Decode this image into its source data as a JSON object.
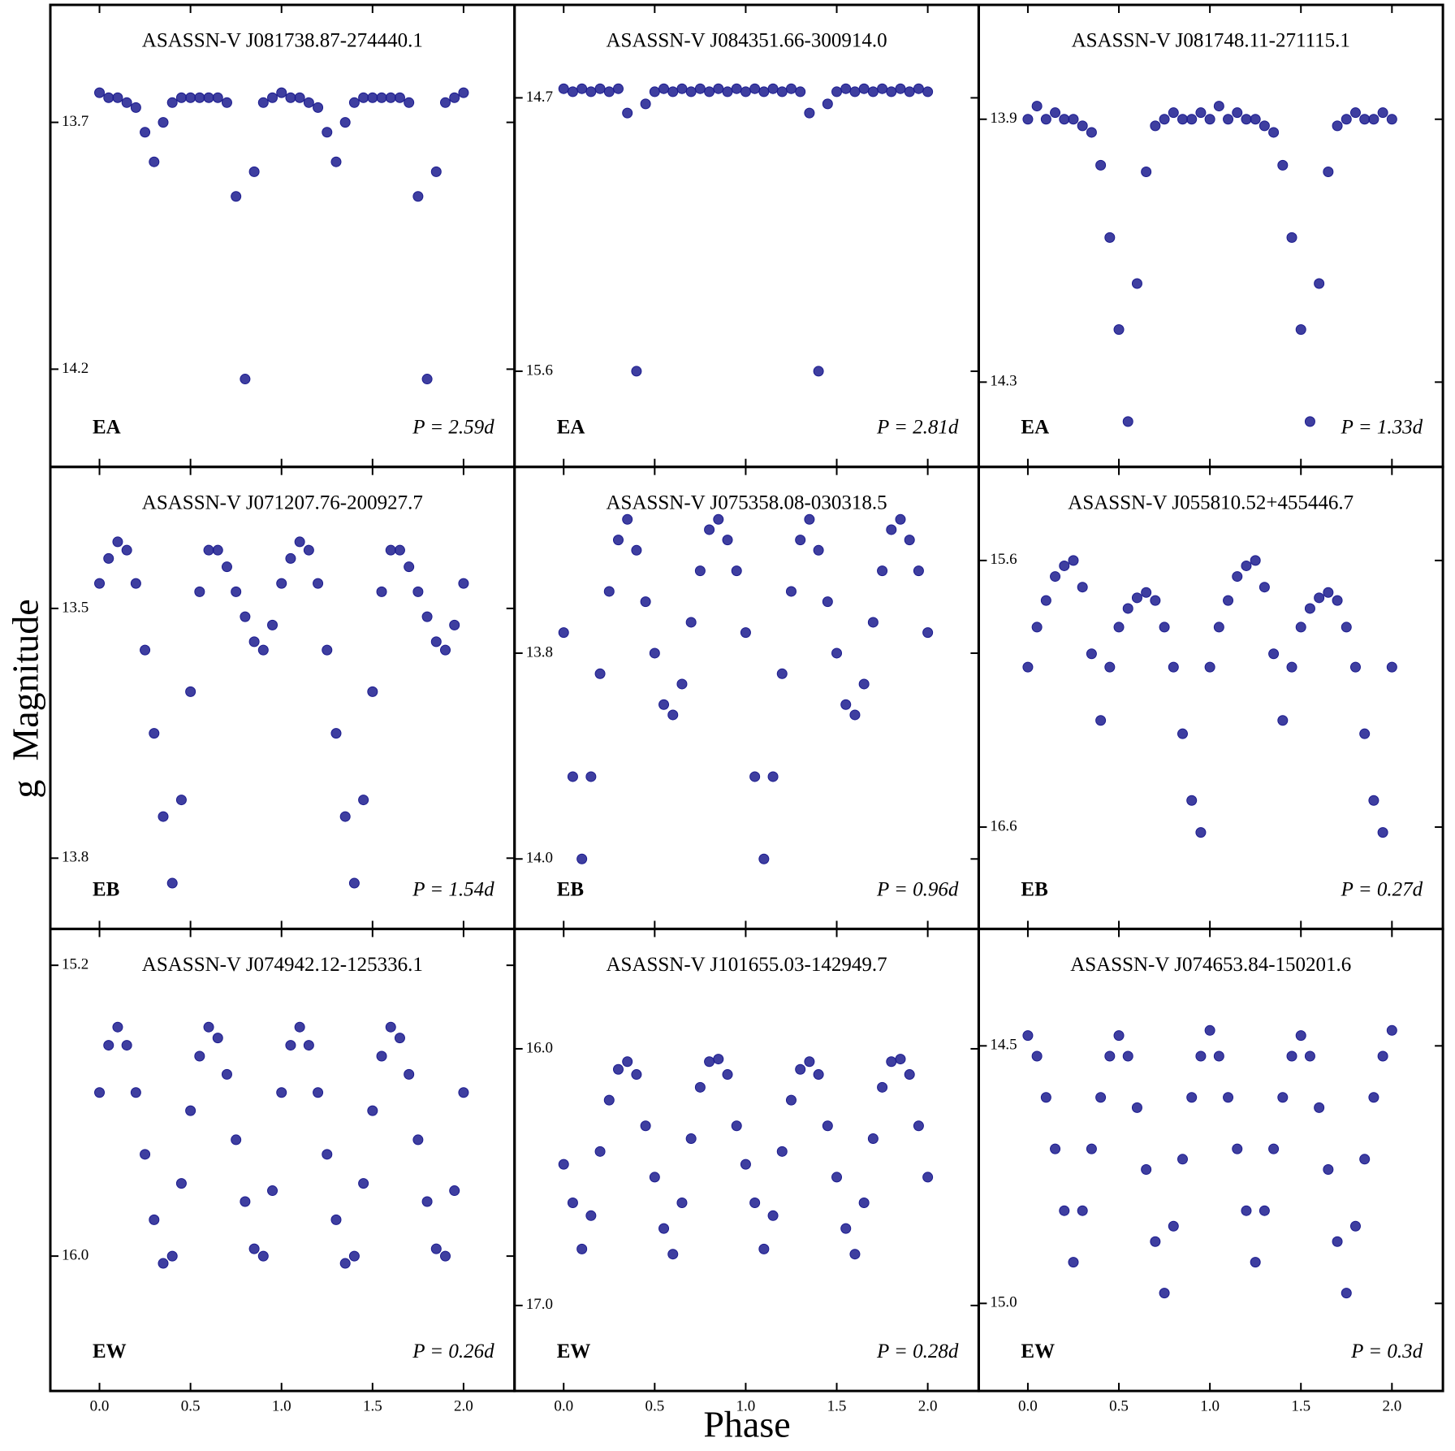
{
  "figure": {
    "xlabel": "Phase",
    "ylabel": "g  Magnitude"
  },
  "chart_data": [
    {
      "type": "scatter",
      "title": "ASASSN-V J081738.87-274440.1",
      "class_label": "EA",
      "period_label": "P = 2.59d",
      "color": "#1c1c8f",
      "x": [
        0,
        0.05,
        0.1,
        0.15,
        0.2,
        0.25,
        0.3,
        0.35,
        0.4,
        0.45,
        0.5,
        0.55,
        0.6,
        0.65,
        0.7,
        0.75,
        0.8,
        0.85,
        0.9,
        0.95,
        1,
        1.05,
        1.1,
        1.15,
        1.2,
        1.25,
        1.3,
        1.35,
        1.4,
        1.45,
        1.5,
        1.55,
        1.6,
        1.65,
        1.7,
        1.75,
        1.8,
        1.85,
        1.9,
        1.95,
        2
      ],
      "values": [
        13.64,
        13.65,
        13.65,
        13.66,
        13.67,
        13.72,
        13.78,
        13.7,
        13.66,
        13.65,
        13.65,
        13.65,
        13.65,
        13.65,
        13.66,
        13.85,
        14.22,
        13.8,
        13.66,
        13.65,
        13.64,
        13.65,
        13.65,
        13.66,
        13.67,
        13.72,
        13.78,
        13.7,
        13.66,
        13.65,
        13.65,
        13.65,
        13.65,
        13.65,
        13.66,
        13.85,
        14.22,
        13.8,
        13.66,
        13.65,
        13.64
      ],
      "xlim": [
        -0.27,
        2.28
      ],
      "xticks": [
        0,
        0.5,
        1,
        1.5,
        2
      ],
      "ylim": [
        13.462,
        14.398
      ],
      "yticks": [
        13.7,
        14.2
      ],
      "invert_y": true
    },
    {
      "type": "scatter",
      "title": "ASASSN-V J084351.66-300914.0",
      "class_label": "EA",
      "period_label": "P = 2.81d",
      "color": "#1c1c8f",
      "x": [
        0,
        0.05,
        0.1,
        0.15,
        0.2,
        0.25,
        0.3,
        0.35,
        0.4,
        0.45,
        0.5,
        0.55,
        0.6,
        0.65,
        0.7,
        0.75,
        0.8,
        0.85,
        0.9,
        0.95,
        1,
        1.05,
        1.1,
        1.15,
        1.2,
        1.25,
        1.3,
        1.35,
        1.4,
        1.45,
        1.5,
        1.55,
        1.6,
        1.65,
        1.7,
        1.75,
        1.8,
        1.85,
        1.9,
        1.95,
        2
      ],
      "values": [
        14.67,
        14.68,
        14.67,
        14.68,
        14.67,
        14.68,
        14.67,
        14.75,
        15.6,
        14.72,
        14.68,
        14.67,
        14.68,
        14.67,
        14.68,
        14.67,
        14.68,
        14.67,
        14.68,
        14.67,
        14.68,
        14.67,
        14.68,
        14.67,
        14.68,
        14.67,
        14.68,
        14.75,
        15.6,
        14.72,
        14.68,
        14.67,
        14.68,
        14.67,
        14.68,
        14.67,
        14.68,
        14.67,
        14.68,
        14.67,
        14.68
      ],
      "xlim": [
        -0.27,
        2.28
      ],
      "xticks": [
        0,
        0.5,
        1,
        1.5,
        2
      ],
      "ylim": [
        14.394,
        15.915
      ],
      "yticks": [
        14.7,
        15.6
      ],
      "invert_y": true
    },
    {
      "type": "scatter",
      "title": "ASASSN-V J081748.11-271115.1",
      "class_label": "EA",
      "period_label": "P = 1.33d",
      "color": "#1c1c8f",
      "x": [
        0,
        0.05,
        0.1,
        0.15,
        0.2,
        0.25,
        0.3,
        0.35,
        0.4,
        0.45,
        0.5,
        0.55,
        0.6,
        0.65,
        0.7,
        0.75,
        0.8,
        0.85,
        0.9,
        0.95,
        1,
        1.05,
        1.1,
        1.15,
        1.2,
        1.25,
        1.3,
        1.35,
        1.4,
        1.45,
        1.5,
        1.55,
        1.6,
        1.65,
        1.7,
        1.75,
        1.8,
        1.85,
        1.9,
        1.95,
        2
      ],
      "values": [
        13.9,
        13.88,
        13.9,
        13.89,
        13.9,
        13.9,
        13.91,
        13.92,
        13.97,
        14.08,
        14.22,
        14.36,
        14.15,
        13.98,
        13.91,
        13.9,
        13.89,
        13.9,
        13.9,
        13.89,
        13.9,
        13.88,
        13.9,
        13.89,
        13.9,
        13.9,
        13.91,
        13.92,
        13.97,
        14.08,
        14.22,
        14.36,
        14.15,
        13.98,
        13.91,
        13.9,
        13.89,
        13.9,
        13.9,
        13.89,
        13.9
      ],
      "xlim": [
        -0.27,
        2.28
      ],
      "xticks": [
        0,
        0.5,
        1,
        1.5,
        2
      ],
      "ylim": [
        13.726,
        14.429
      ],
      "yticks": [
        13.9,
        14.3
      ],
      "invert_y": true
    },
    {
      "type": "scatter",
      "title": "ASASSN-V J071207.76-200927.7",
      "class_label": "EB",
      "period_label": "P = 1.54d",
      "color": "#1c1c8f",
      "x": [
        0,
        0.05,
        0.1,
        0.15,
        0.2,
        0.25,
        0.3,
        0.35,
        0.4,
        0.45,
        0.5,
        0.55,
        0.6,
        0.65,
        0.7,
        0.75,
        0.8,
        0.85,
        0.9,
        0.95,
        1,
        1.05,
        1.1,
        1.15,
        1.2,
        1.25,
        1.3,
        1.35,
        1.4,
        1.45,
        1.5,
        1.55,
        1.6,
        1.65,
        1.7,
        1.75,
        1.8,
        1.85,
        1.9,
        1.95,
        2
      ],
      "values": [
        13.47,
        13.44,
        13.42,
        13.43,
        13.47,
        13.55,
        13.65,
        13.75,
        13.83,
        13.73,
        13.6,
        13.48,
        13.43,
        13.43,
        13.45,
        13.48,
        13.51,
        13.54,
        13.55,
        13.52,
        13.47,
        13.44,
        13.42,
        13.43,
        13.47,
        13.55,
        13.65,
        13.75,
        13.83,
        13.73,
        13.6,
        13.48,
        13.43,
        13.43,
        13.45,
        13.48,
        13.51,
        13.54,
        13.55,
        13.52,
        13.47
      ],
      "xlim": [
        -0.27,
        2.28
      ],
      "xticks": [
        0,
        0.5,
        1,
        1.5,
        2
      ],
      "ylim": [
        13.33,
        13.885
      ],
      "yticks": [
        13.5,
        13.8
      ],
      "invert_y": true
    },
    {
      "type": "scatter",
      "title": "ASASSN-V J075358.08-030318.5",
      "class_label": "EB",
      "period_label": "P = 0.96d",
      "color": "#1c1c8f",
      "x": [
        0,
        0.05,
        0.1,
        0.15,
        0.2,
        0.25,
        0.3,
        0.35,
        0.4,
        0.45,
        0.5,
        0.55,
        0.6,
        0.65,
        0.7,
        0.75,
        0.8,
        0.85,
        0.9,
        0.95,
        1,
        1.05,
        1.1,
        1.15,
        1.2,
        1.25,
        1.3,
        1.35,
        1.4,
        1.45,
        1.5,
        1.55,
        1.6,
        1.65,
        1.7,
        1.75,
        1.8,
        1.85,
        1.9,
        1.95,
        2
      ],
      "values": [
        13.78,
        13.92,
        14.0,
        13.92,
        13.82,
        13.74,
        13.69,
        13.67,
        13.7,
        13.75,
        13.8,
        13.85,
        13.86,
        13.83,
        13.77,
        13.72,
        13.68,
        13.67,
        13.69,
        13.72,
        13.78,
        13.92,
        14.0,
        13.92,
        13.82,
        13.74,
        13.69,
        13.67,
        13.7,
        13.75,
        13.8,
        13.85,
        13.86,
        13.83,
        13.77,
        13.72,
        13.68,
        13.67,
        13.69,
        13.72,
        13.78
      ],
      "xlim": [
        -0.27,
        2.28
      ],
      "xticks": [
        0,
        0.5,
        1,
        1.5,
        2
      ],
      "ylim": [
        13.619,
        14.068
      ],
      "yticks": [
        13.8,
        {
          "value": 14,
          "label": "14.0"
        }
      ],
      "invert_y": true
    },
    {
      "type": "scatter",
      "title": "ASASSN-V J055810.52+455446.7",
      "class_label": "EB",
      "period_label": "P = 0.27d",
      "color": "#1c1c8f",
      "x": [
        0,
        0.05,
        0.1,
        0.15,
        0.2,
        0.25,
        0.3,
        0.35,
        0.4,
        0.45,
        0.5,
        0.55,
        0.6,
        0.65,
        0.7,
        0.75,
        0.8,
        0.85,
        0.9,
        0.95,
        1,
        1.05,
        1.1,
        1.15,
        1.2,
        1.25,
        1.3,
        1.35,
        1.4,
        1.45,
        1.5,
        1.55,
        1.6,
        1.65,
        1.7,
        1.75,
        1.8,
        1.85,
        1.9,
        1.95,
        2
      ],
      "values": [
        16.0,
        15.85,
        15.75,
        15.66,
        15.62,
        15.6,
        15.7,
        15.95,
        16.2,
        16.0,
        15.85,
        15.78,
        15.74,
        15.72,
        15.75,
        15.85,
        16.0,
        16.25,
        16.5,
        16.62,
        16.0,
        15.85,
        15.75,
        15.66,
        15.62,
        15.6,
        15.7,
        15.95,
        16.2,
        16.0,
        15.85,
        15.78,
        15.74,
        15.72,
        15.75,
        15.85,
        16.0,
        16.25,
        16.5,
        16.62,
        16.0
      ],
      "xlim": [
        -0.27,
        2.28
      ],
      "xticks": [
        0,
        0.5,
        1,
        1.5,
        2
      ],
      "ylim": [
        15.249,
        16.982
      ],
      "yticks": [
        15.6,
        16.6
      ],
      "invert_y": true
    },
    {
      "type": "scatter",
      "title": "ASASSN-V J074942.12-125336.1",
      "class_label": "EW",
      "period_label": "P = 0.26d",
      "color": "#1c1c8f",
      "x": [
        0,
        0.05,
        0.1,
        0.15,
        0.2,
        0.25,
        0.3,
        0.35,
        0.4,
        0.45,
        0.5,
        0.55,
        0.6,
        0.65,
        0.7,
        0.75,
        0.8,
        0.85,
        0.9,
        0.95,
        1,
        1.05,
        1.1,
        1.15,
        1.2,
        1.25,
        1.3,
        1.35,
        1.4,
        1.45,
        1.5,
        1.55,
        1.6,
        1.65,
        1.7,
        1.75,
        1.8,
        1.85,
        1.9,
        1.95,
        2
      ],
      "values": [
        15.55,
        15.42,
        15.37,
        15.42,
        15.55,
        15.72,
        15.9,
        16.02,
        16.0,
        15.8,
        15.6,
        15.45,
        15.37,
        15.4,
        15.5,
        15.68,
        15.85,
        15.98,
        16.0,
        15.82,
        15.55,
        15.42,
        15.37,
        15.42,
        15.55,
        15.72,
        15.9,
        16.02,
        16.0,
        15.8,
        15.6,
        15.45,
        15.37,
        15.4,
        15.5,
        15.68,
        15.85,
        15.98,
        16.0,
        15.82,
        15.55
      ],
      "xlim": [
        -0.27,
        2.28
      ],
      "xticks": [
        {
          "value": 0,
          "label": "0.0"
        },
        {
          "value": 0.5,
          "label": "0.5"
        },
        {
          "value": 1,
          "label": "1.0"
        },
        {
          "value": 1.5,
          "label": "1.5"
        },
        {
          "value": 2,
          "label": "2.0"
        }
      ],
      "ylim": [
        15.1,
        16.371
      ],
      "yticks": [
        15.2,
        {
          "value": 16,
          "label": "16.0"
        }
      ],
      "invert_y": true
    },
    {
      "type": "scatter",
      "title": "ASASSN-V J101655.03-142949.7",
      "class_label": "EW",
      "period_label": "P = 0.28d",
      "color": "#1c1c8f",
      "x": [
        0,
        0.05,
        0.1,
        0.15,
        0.2,
        0.25,
        0.3,
        0.35,
        0.4,
        0.45,
        0.5,
        0.55,
        0.6,
        0.65,
        0.7,
        0.75,
        0.8,
        0.85,
        0.9,
        0.95,
        1,
        1.05,
        1.1,
        1.15,
        1.2,
        1.25,
        1.3,
        1.35,
        1.4,
        1.45,
        1.5,
        1.55,
        1.6,
        1.65,
        1.7,
        1.75,
        1.8,
        1.85,
        1.9,
        1.95,
        2
      ],
      "values": [
        16.45,
        16.6,
        16.78,
        16.65,
        16.4,
        16.2,
        16.08,
        16.05,
        16.1,
        16.3,
        16.5,
        16.7,
        16.8,
        16.6,
        16.35,
        16.15,
        16.05,
        16.04,
        16.1,
        16.3,
        16.45,
        16.6,
        16.78,
        16.65,
        16.4,
        16.2,
        16.08,
        16.05,
        16.1,
        16.3,
        16.5,
        16.7,
        16.8,
        16.6,
        16.35,
        16.15,
        16.05,
        16.04,
        16.1,
        16.3,
        16.5
      ],
      "xlim": [
        -0.27,
        2.28
      ],
      "xticks": [
        {
          "value": 0,
          "label": "0.0"
        },
        {
          "value": 0.5,
          "label": "0.5"
        },
        {
          "value": 1,
          "label": "1.0"
        },
        {
          "value": 1.5,
          "label": "1.5"
        },
        {
          "value": 2,
          "label": "2.0"
        }
      ],
      "ylim": [
        15.533,
        17.333
      ],
      "yticks": [
        {
          "value": 16,
          "label": "16.0"
        },
        {
          "value": 17,
          "label": "17.0"
        }
      ],
      "invert_y": true
    },
    {
      "type": "scatter",
      "title": "ASASSN-V J074653.84-150201.6",
      "class_label": "EW",
      "period_label": "P = 0.3d",
      "color": "#1c1c8f",
      "x": [
        0,
        0.05,
        0.1,
        0.15,
        0.2,
        0.25,
        0.3,
        0.35,
        0.4,
        0.45,
        0.5,
        0.55,
        0.6,
        0.65,
        0.7,
        0.75,
        0.8,
        0.85,
        0.9,
        0.95,
        1,
        1.05,
        1.1,
        1.15,
        1.2,
        1.25,
        1.3,
        1.35,
        1.4,
        1.45,
        1.5,
        1.55,
        1.6,
        1.65,
        1.7,
        1.75,
        1.8,
        1.85,
        1.9,
        1.95,
        2
      ],
      "values": [
        14.48,
        14.52,
        14.6,
        14.7,
        14.82,
        14.92,
        14.82,
        14.7,
        14.6,
        14.52,
        14.48,
        14.52,
        14.62,
        14.74,
        14.88,
        14.98,
        14.85,
        14.72,
        14.6,
        14.52,
        14.47,
        14.52,
        14.6,
        14.7,
        14.82,
        14.92,
        14.82,
        14.7,
        14.6,
        14.52,
        14.48,
        14.52,
        14.62,
        14.74,
        14.88,
        14.98,
        14.85,
        14.72,
        14.6,
        14.52,
        14.47
      ],
      "xlim": [
        -0.27,
        2.28
      ],
      "xticks": [
        {
          "value": 0,
          "label": "0.0"
        },
        {
          "value": 0.5,
          "label": "0.5"
        },
        {
          "value": 1,
          "label": "1.0"
        },
        {
          "value": 1.5,
          "label": "1.5"
        },
        {
          "value": 2,
          "label": "2.0"
        }
      ],
      "ylim": [
        14.273,
        15.17
      ],
      "yticks": [
        14.5,
        {
          "value": 15,
          "label": "15.0"
        }
      ],
      "invert_y": true
    }
  ]
}
